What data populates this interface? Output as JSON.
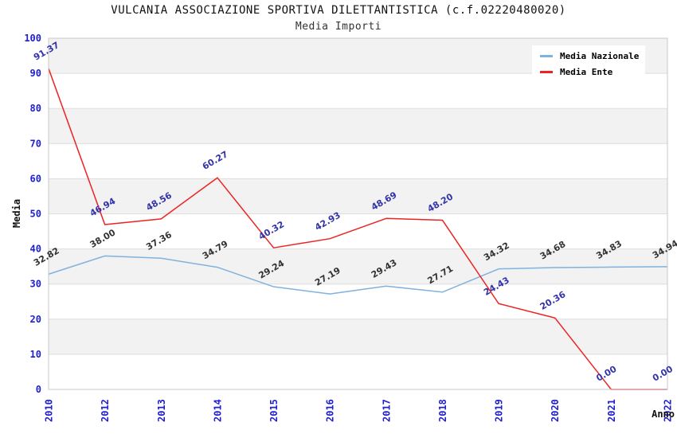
{
  "header": {
    "title": "VULCANIA ASSOCIAZIONE SPORTIVA DILETTANTISTICA (c.f.02220480020)",
    "subtitle": "Media Importi"
  },
  "legend": {
    "items": [
      {
        "label": "Media Nazionale",
        "color": "#7fb2de"
      },
      {
        "label": "Media Ente",
        "color": "#ee2222"
      }
    ]
  },
  "colors": {
    "tick_label": "#2020cc",
    "axis_title": "#111111",
    "band_gray": "#f2f2f2",
    "grid_line": "#dedede",
    "plot_border": "#c8c8c8",
    "background": "#ffffff"
  },
  "chart_data": {
    "type": "line",
    "title": "VULCANIA ASSOCIAZIONE SPORTIVA DILETTANTISTICA (c.f.02220480020)",
    "subtitle": "Media Importi",
    "xlabel": "Anno",
    "ylabel": "Media",
    "ylim": [
      0,
      100
    ],
    "y_tick_step": 10,
    "grid": "horizontal-bands",
    "legend_position": "top-right",
    "categories": [
      "2010",
      "2012",
      "2013",
      "2014",
      "2015",
      "2016",
      "2017",
      "2018",
      "2019",
      "2020",
      "2021",
      "2022"
    ],
    "series": [
      {
        "name": "Media Nazionale",
        "color": "#7fb2de",
        "label_color": "#333333",
        "values": [
          32.82,
          38.0,
          37.36,
          34.79,
          29.24,
          27.19,
          29.43,
          27.71,
          34.32,
          34.68,
          34.83,
          34.94
        ]
      },
      {
        "name": "Media Ente",
        "color": "#ee2222",
        "label_color": "#3333aa",
        "values": [
          91.37,
          46.94,
          48.56,
          60.27,
          40.32,
          42.93,
          48.69,
          48.2,
          24.43,
          20.36,
          0.0,
          0.0
        ]
      }
    ]
  }
}
